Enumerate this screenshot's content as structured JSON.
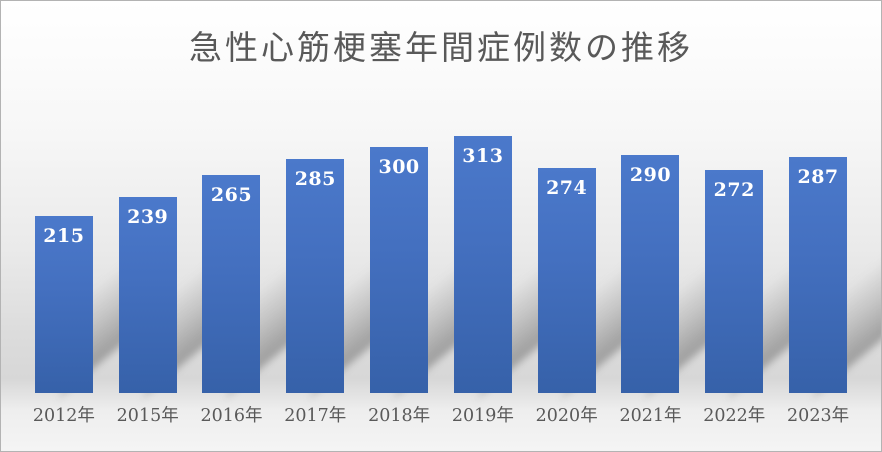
{
  "chart_data": {
    "type": "bar",
    "title": "急性心筋梗塞年間症例数の推移",
    "categories": [
      "2012年",
      "2015年",
      "2016年",
      "2017年",
      "2018年",
      "2019年",
      "2020年",
      "2021年",
      "2022年",
      "2023年"
    ],
    "values": [
      215,
      239,
      265,
      285,
      300,
      313,
      274,
      290,
      272,
      287
    ],
    "xlabel": "",
    "ylabel": "",
    "ylim": [
      0,
      340
    ],
    "grid": false,
    "legend": null,
    "data_labels": "inside-end",
    "orientation": "vertical",
    "bar_color_top": "#4b79cb",
    "bar_color_bottom": "#3661a9",
    "value_label_color": "#ffffff",
    "axis_label_color": "#595959",
    "title_color": "#595959",
    "shadow": "perspective-lower-right"
  }
}
